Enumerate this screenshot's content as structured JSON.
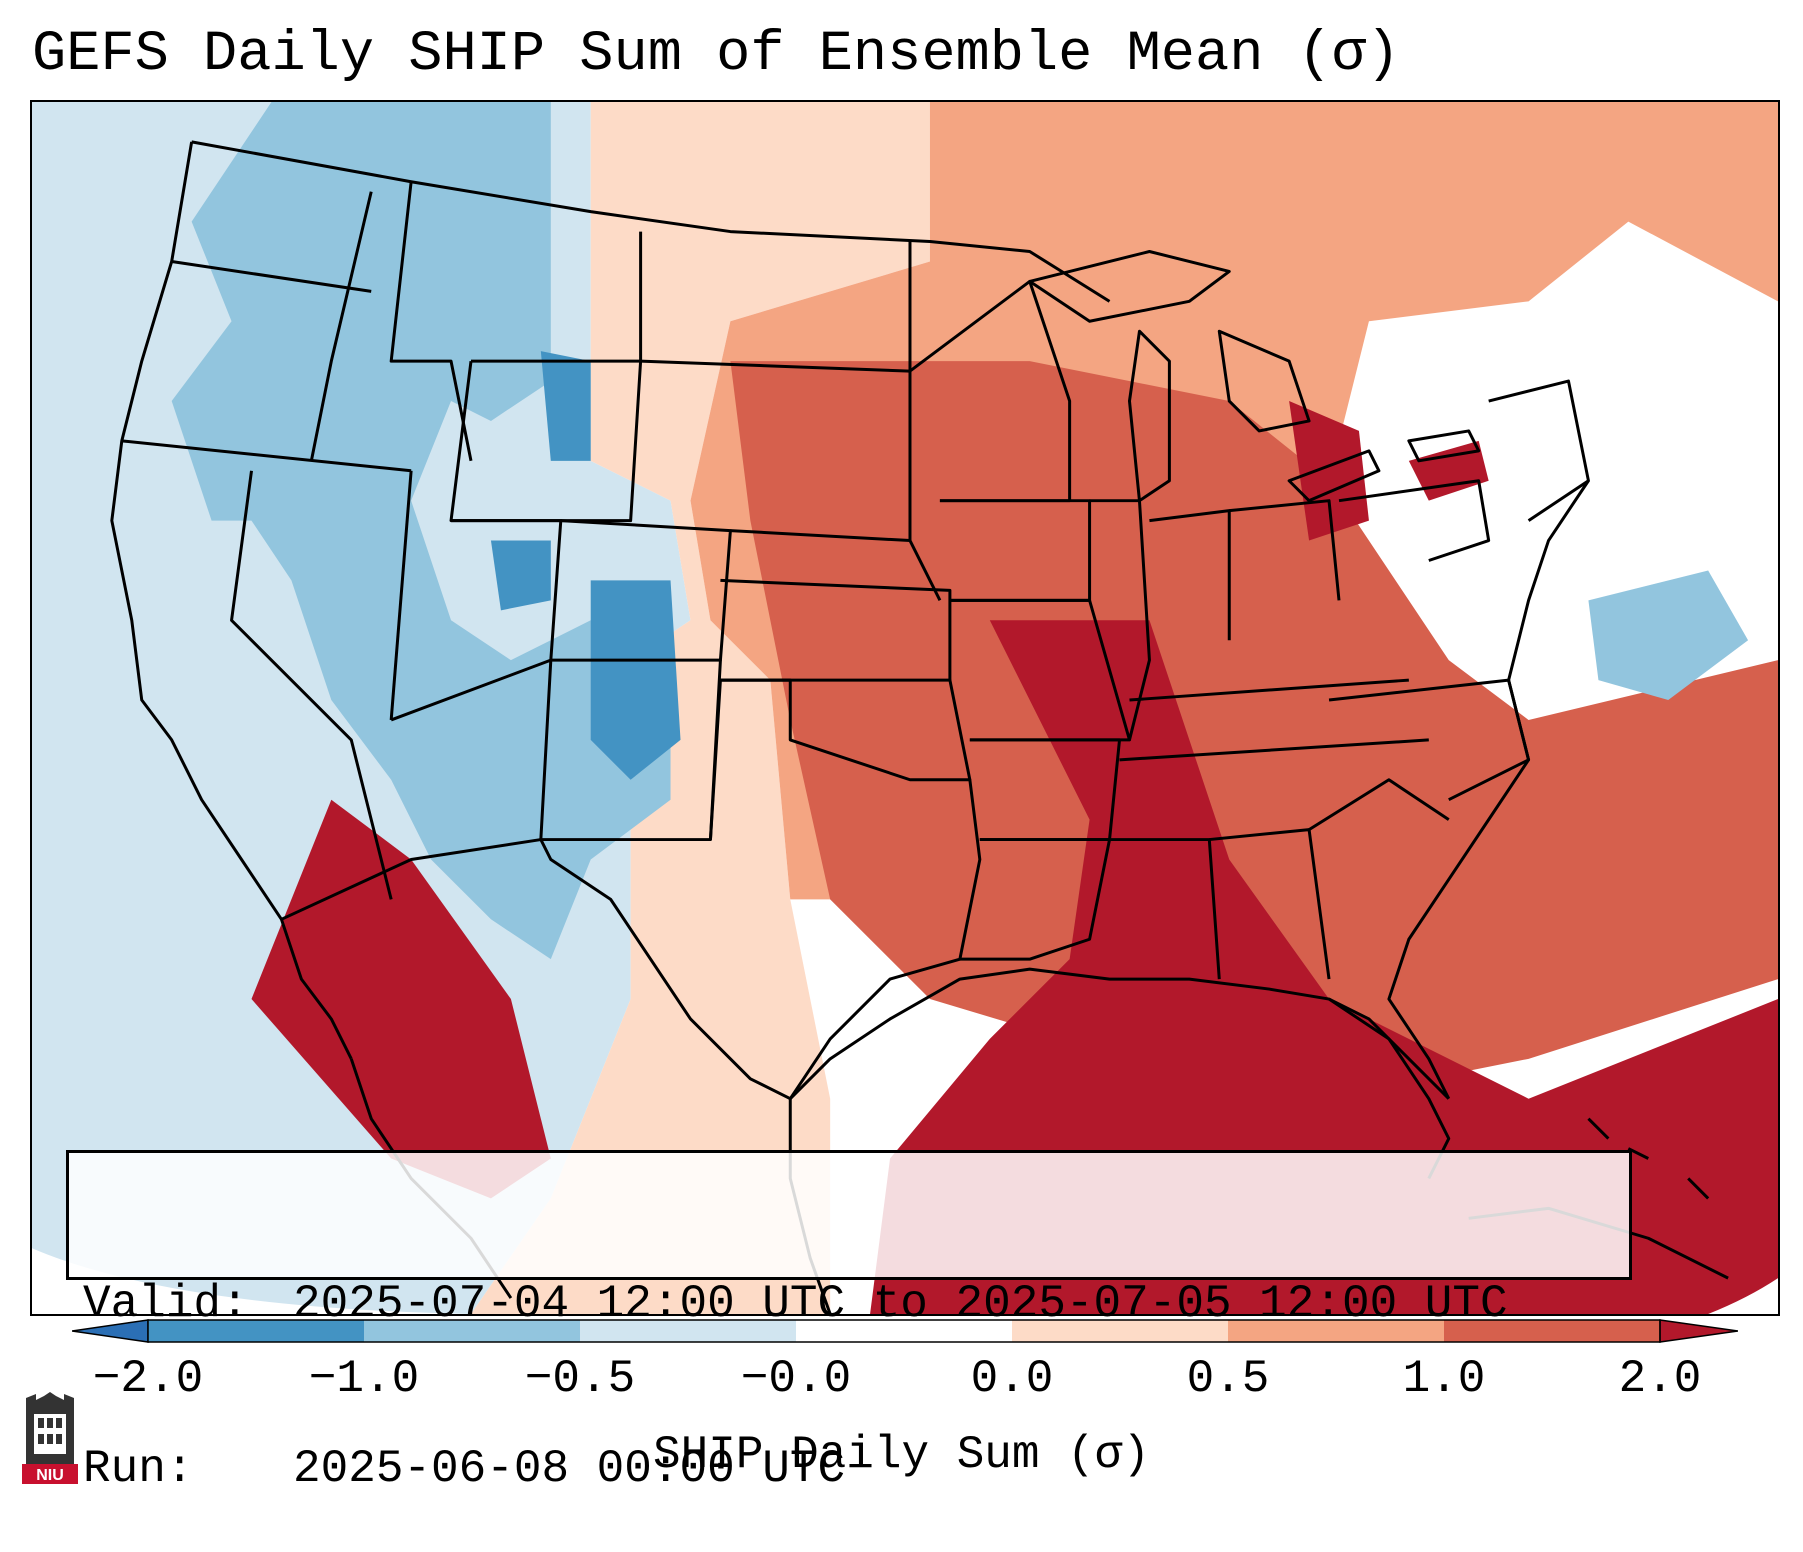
{
  "title": "GEFS Daily SHIP Sum of Ensemble Mean (σ)",
  "info": {
    "valid_label": "Valid:",
    "valid_value": "2025-07-04 12:00 UTC to 2025-07-05 12:00 UTC",
    "run_label": "Run:",
    "run_value": "2025-06-08 00:00 UTC"
  },
  "colorbar": {
    "label": "SHIP Daily Sum (σ)",
    "ticks": [
      "−2.0",
      "−1.0",
      "−0.5",
      "−0.0",
      "0.0",
      "0.5",
      "1.0",
      "2.0"
    ],
    "colors": {
      "under": "#2b6fb5",
      "c1": "#4393c3",
      "c2": "#92c5de",
      "c3": "#d1e5f0",
      "c4": "#fddbc7",
      "c5": "#f4a582",
      "c6": "#d6604d",
      "c7": "#b2182b",
      "over": "#a50f25"
    }
  },
  "logo": {
    "text": "NIU",
    "icon": "niu-seal-icon"
  }
}
